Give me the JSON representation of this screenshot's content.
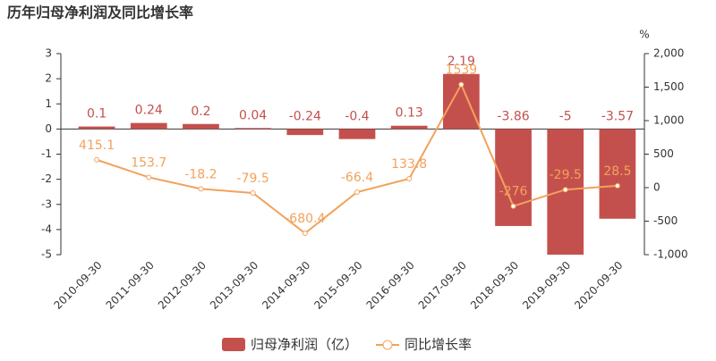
{
  "chart_data": {
    "type": "bar",
    "title": "历年归母净利润及同比增长率",
    "categories": [
      "2010-09-30",
      "2011-09-30",
      "2012-09-30",
      "2013-09-30",
      "2014-09-30",
      "2015-09-30",
      "2016-09-30",
      "2017-09-30",
      "2018-09-30",
      "2019-09-30",
      "2020-09-30"
    ],
    "series": [
      {
        "name": "归母净利润（亿）",
        "type": "bar",
        "color": "#c4504d",
        "values": [
          0.1,
          0.24,
          0.2,
          0.04,
          -0.24,
          -0.4,
          0.13,
          2.19,
          -3.86,
          -5,
          -3.57
        ]
      },
      {
        "name": "同比增长率",
        "type": "line",
        "axis": "y2",
        "color": "#f2a25c",
        "values": [
          415.1,
          153.7,
          -18.2,
          -79.5,
          -680.4,
          -66.4,
          133.8,
          1539,
          -276,
          -29.5,
          28.5
        ]
      }
    ],
    "ylim": [
      -5,
      3
    ],
    "yticks": [
      -5,
      -4,
      -3,
      -2,
      -1,
      0,
      1,
      2,
      3
    ],
    "y2label": "%",
    "y2lim": [
      -1000,
      2000
    ],
    "y2ticks": [
      {
        "value": -1000,
        "label": "-1,000"
      },
      -500,
      0,
      500,
      {
        "value": 1000,
        "label": "1,000"
      },
      {
        "value": 1500,
        "label": "1,500"
      },
      {
        "value": 2000,
        "label": "2,000"
      }
    ],
    "legend": "bottom"
  }
}
